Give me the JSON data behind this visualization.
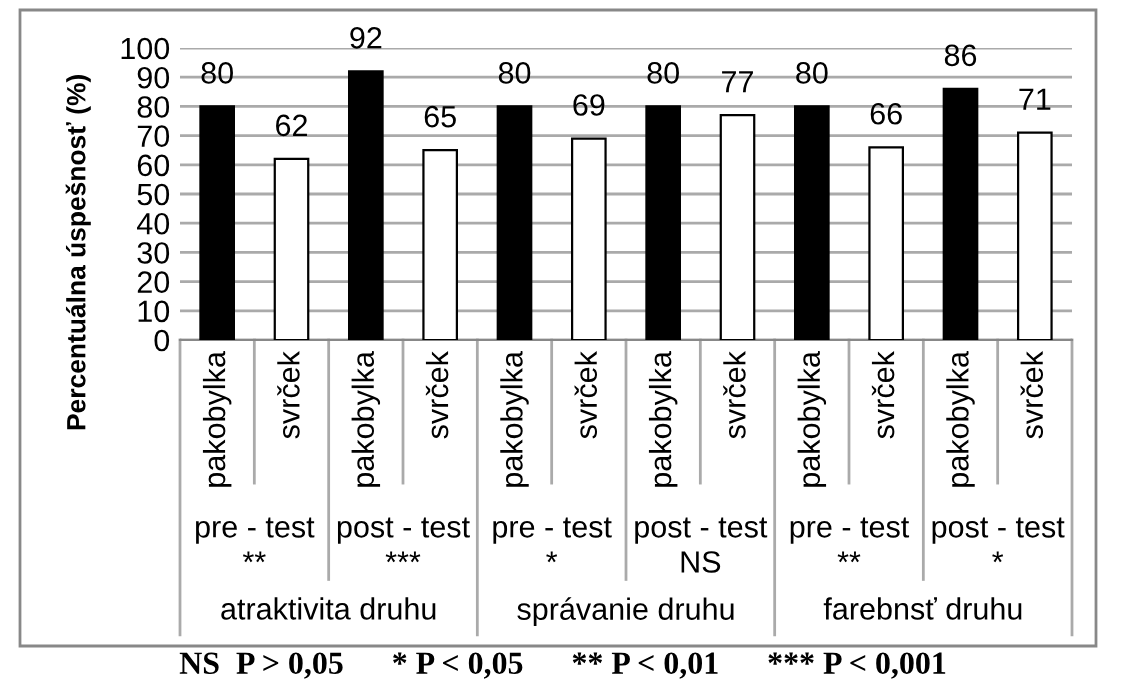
{
  "chart_data": {
    "type": "bar",
    "ylabel": "Percentuálna úspešnosť (%)",
    "categories": [
      "pakobylka",
      "svrček",
      "pakobylka",
      "svrček",
      "pakobylka",
      "svrček",
      "pakobylka",
      "svrček",
      "pakobylka",
      "svrček",
      "pakobylka",
      "svrček"
    ],
    "values": [
      80,
      62,
      92,
      65,
      80,
      69,
      80,
      77,
      80,
      66,
      86,
      71
    ],
    "colors": [
      "#000000",
      "#ffffff",
      "#000000",
      "#ffffff",
      "#000000",
      "#ffffff",
      "#000000",
      "#ffffff",
      "#000000",
      "#ffffff",
      "#000000",
      "#ffffff"
    ],
    "ylim": [
      0,
      100
    ],
    "yticks": [
      0,
      10,
      20,
      30,
      40,
      50,
      60,
      70,
      80,
      90,
      100
    ],
    "grid": "y",
    "data_labels": true,
    "legend": false,
    "annotations": [
      "pre - test\n**",
      "post - test\n***",
      "pre - test\n*",
      "post - test\nNS",
      "pre - test\n**",
      "post - test\n*",
      "atraktivita druhu",
      "správanie druhu",
      "farebnsť druhu",
      "NS  P > 0,05      * P < 0,05      ** P < 0,01      *** P < 0,001"
    ]
  }
}
